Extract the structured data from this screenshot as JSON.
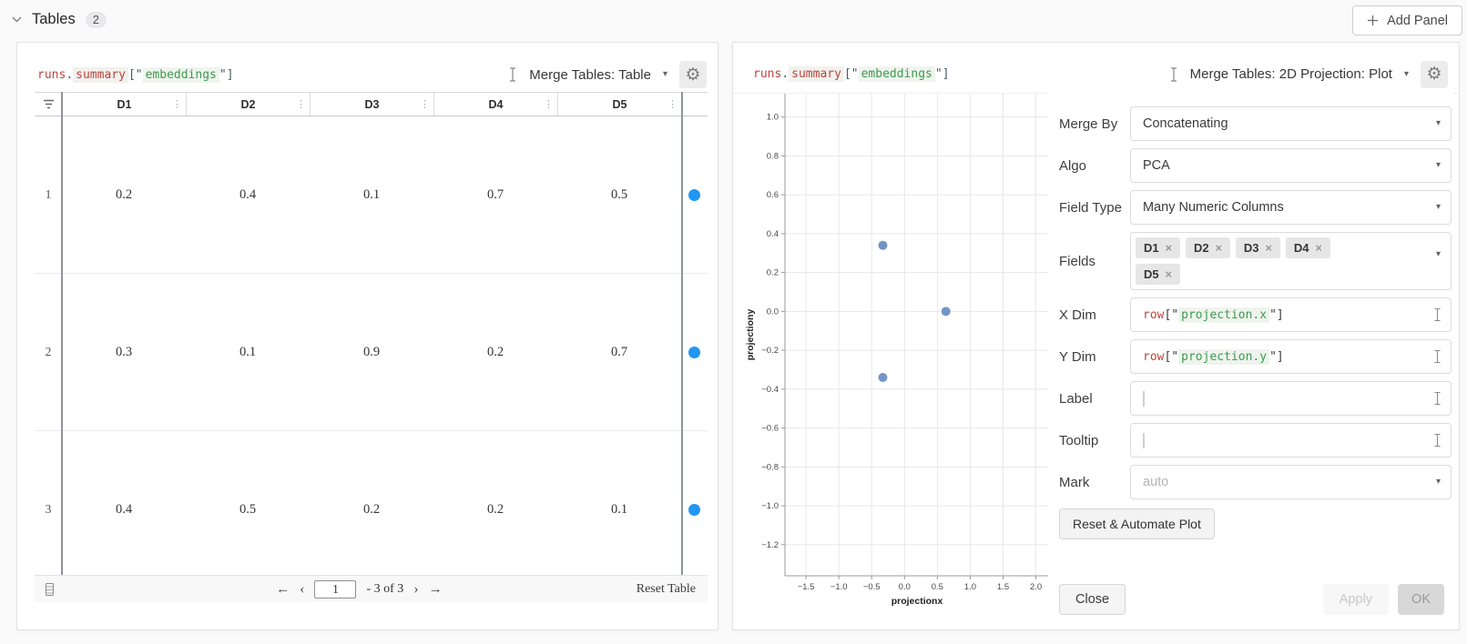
{
  "page": {
    "section_title": "Tables",
    "section_count": "2",
    "add_panel_label": "Add Panel"
  },
  "left_panel": {
    "expression": {
      "obj": "runs",
      "dot": ".",
      "method": "summary",
      "open_bracket": "[\"",
      "key": "embeddings",
      "close_bracket": "\"]"
    },
    "view_selector_label": "Merge Tables: Table",
    "table": {
      "columns": [
        "D1",
        "D2",
        "D3",
        "D4",
        "D5"
      ],
      "rows": [
        {
          "index": "1",
          "values": [
            "0.2",
            "0.4",
            "0.1",
            "0.7",
            "0.5"
          ]
        },
        {
          "index": "2",
          "values": [
            "0.3",
            "0.1",
            "0.9",
            "0.2",
            "0.7"
          ]
        },
        {
          "index": "3",
          "values": [
            "0.4",
            "0.5",
            "0.2",
            "0.2",
            "0.1"
          ]
        }
      ],
      "row_dot_color": "#2196f3"
    },
    "footer": {
      "page_value": "1",
      "range_text": "- 3 of 3",
      "reset_label": "Reset Table",
      "first_arrow": "←",
      "prev_arrow": "‹",
      "next_arrow": "›",
      "last_arrow": "→"
    }
  },
  "right_panel": {
    "expression": {
      "obj": "runs",
      "dot": ".",
      "method": "summary",
      "open_bracket": "[\"",
      "key": "embeddings",
      "close_bracket": "\"]"
    },
    "view_selector_label": "Merge Tables: 2D Projection: Plot",
    "settings": {
      "merge_by": {
        "label": "Merge By",
        "value": "Concatenating"
      },
      "algo": {
        "label": "Algo",
        "value": "PCA"
      },
      "field_type": {
        "label": "Field Type",
        "value": "Many Numeric Columns"
      },
      "fields": {
        "label": "Fields",
        "chips": [
          "D1",
          "D2",
          "D3",
          "D4",
          "D5"
        ]
      },
      "x_dim": {
        "label": "X Dim",
        "code_obj": "row",
        "open_bracket": "[\"",
        "key": "projection.x",
        "close_bracket": "\"]"
      },
      "y_dim": {
        "label": "Y Dim",
        "code_obj": "row",
        "open_bracket": "[\"",
        "key": "projection.y",
        "close_bracket": "\"]"
      },
      "label_field": {
        "label": "Label",
        "value": ""
      },
      "tooltip_field": {
        "label": "Tooltip",
        "value": ""
      },
      "mark": {
        "label": "Mark",
        "placeholder": "auto"
      },
      "reset_button_label": "Reset & Automate Plot",
      "close_button_label": "Close",
      "apply_button_label": "Apply",
      "ok_button_label": "OK"
    }
  },
  "chart_data": {
    "type": "scatter",
    "title": "",
    "xlabel": "projectionx",
    "ylabel": "projectiony",
    "points": [
      {
        "x": -0.33,
        "y": 0.34
      },
      {
        "x": 0.63,
        "y": 0.0
      },
      {
        "x": -0.33,
        "y": -0.34
      }
    ],
    "xticks": [
      -1.5,
      -1.0,
      -0.5,
      0.0,
      0.5,
      1.0,
      1.5,
      2.0
    ],
    "yticks": [
      1.0,
      0.8,
      0.6,
      0.4,
      0.2,
      0.0,
      -0.2,
      -0.4,
      -0.6,
      -0.8,
      -1.0,
      -1.2
    ],
    "xlim": [
      -1.82,
      2.2
    ],
    "ylim": [
      -1.36,
      1.12
    ],
    "grid": true,
    "legend": "none",
    "point_color": "#7295c6"
  },
  "colors": {
    "row_dot_blue": "#2196f3",
    "scatter_point_blue": "#7295c6",
    "code_red": "#b8453b",
    "code_green": "#3d9a50",
    "accent_bg": "#fafafa"
  }
}
